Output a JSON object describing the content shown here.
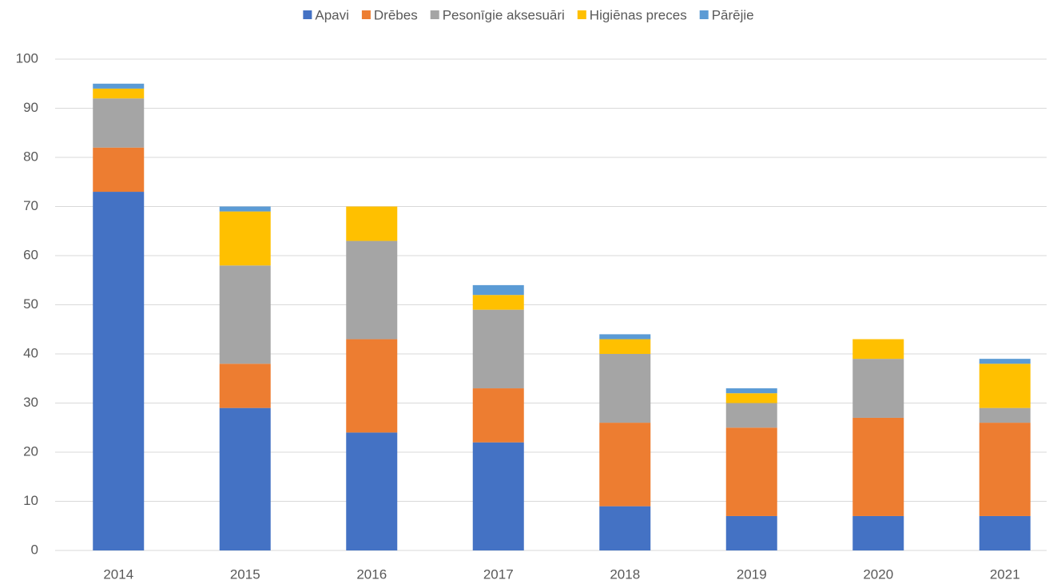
{
  "chart_data": {
    "type": "stacked_bar",
    "categories": [
      "2014",
      "2015",
      "2016",
      "2017",
      "2018",
      "2019",
      "2020",
      "2021"
    ],
    "series": [
      {
        "name": "Apavi",
        "color": "#4472c4",
        "values": [
          73,
          29,
          24,
          22,
          9,
          7,
          7,
          7
        ]
      },
      {
        "name": "Drēbes",
        "color": "#ed7d31",
        "values": [
          9,
          9,
          19,
          11,
          17,
          18,
          20,
          19
        ]
      },
      {
        "name": "Pesonīgie aksesuāri",
        "color": "#a5a5a5",
        "values": [
          10,
          20,
          20,
          16,
          14,
          5,
          12,
          3
        ]
      },
      {
        "name": "Higiēnas preces",
        "color": "#ffc000",
        "values": [
          2,
          11,
          7,
          3,
          3,
          2,
          4,
          9
        ]
      },
      {
        "name": "Pārējie",
        "color": "#5b9bd5",
        "values": [
          1,
          1,
          0,
          2,
          1,
          1,
          0,
          1
        ]
      }
    ],
    "ylim": [
      0,
      100
    ],
    "yticks": [
      0,
      10,
      20,
      30,
      40,
      50,
      60,
      70,
      80,
      90,
      100
    ],
    "grid": true,
    "legend": "top"
  }
}
